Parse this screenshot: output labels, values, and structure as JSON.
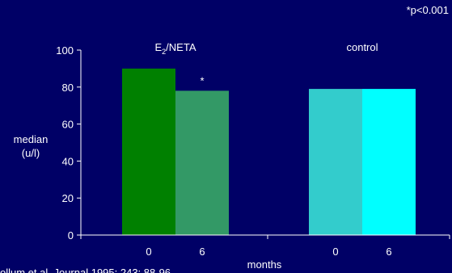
{
  "chart_data": {
    "type": "bar",
    "significance_note": "*p<0.001",
    "ylabel_lines": [
      "median",
      "(u/l)"
    ],
    "xlabel": "months",
    "ylim": [
      0,
      100
    ],
    "yticks": [
      0,
      20,
      40,
      60,
      80,
      100
    ],
    "groups": [
      {
        "label_main": "E",
        "label_sub": "2",
        "label_rest": "/NETA",
        "bars": [
          {
            "category": "0",
            "value": 90,
            "color": "#008000",
            "annotation": ""
          },
          {
            "category": "6",
            "value": 78,
            "color": "#339966",
            "annotation": "*"
          }
        ]
      },
      {
        "label_main": "control",
        "label_sub": "",
        "label_rest": "",
        "bars": [
          {
            "category": "0",
            "value": 79,
            "color": "#33CCCC",
            "annotation": ""
          },
          {
            "category": "6",
            "value": 79,
            "color": "#00FFFF",
            "annotation": ""
          }
        ]
      }
    ],
    "footnote": "ollum et al. Journal 1995; 243: 88-96",
    "grid": false,
    "legend": "none"
  },
  "colors": {
    "background": "#000066",
    "axis": "#ffffff",
    "text": "#ffffff"
  }
}
